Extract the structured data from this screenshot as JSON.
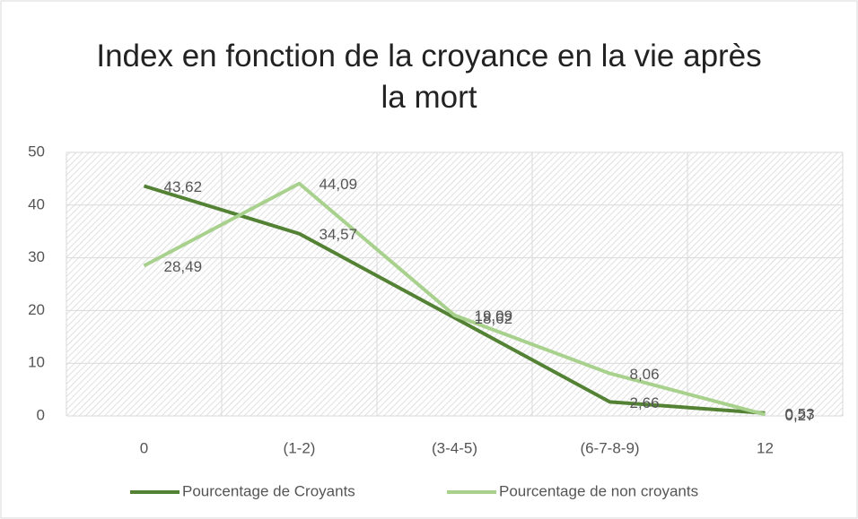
{
  "chart_data": {
    "type": "line",
    "title": "Index en fonction de la croyance en la vie après la mort",
    "categories": [
      "0",
      "(1-2)",
      "(3-4-5)",
      "(6-7-8-9)",
      "12"
    ],
    "series": [
      {
        "name": "Pourcentage de Croyants",
        "color": "#548235",
        "values": [
          43.62,
          34.57,
          18.62,
          2.66,
          0.53
        ],
        "value_labels": [
          "43,62",
          "34,57",
          "18,62",
          "2,66",
          "0,53"
        ]
      },
      {
        "name": "Pourcentage de non croyants",
        "color": "#a9d18e",
        "values": [
          28.49,
          44.09,
          19.09,
          8.06,
          0.27
        ],
        "value_labels": [
          "28,49",
          "44,09",
          "19,09",
          "8,06",
          "0,27"
        ]
      }
    ],
    "ylim": [
      0,
      50
    ],
    "yticks": [
      0,
      10,
      20,
      30,
      40,
      50
    ],
    "grid": true,
    "legend": "bottom"
  }
}
